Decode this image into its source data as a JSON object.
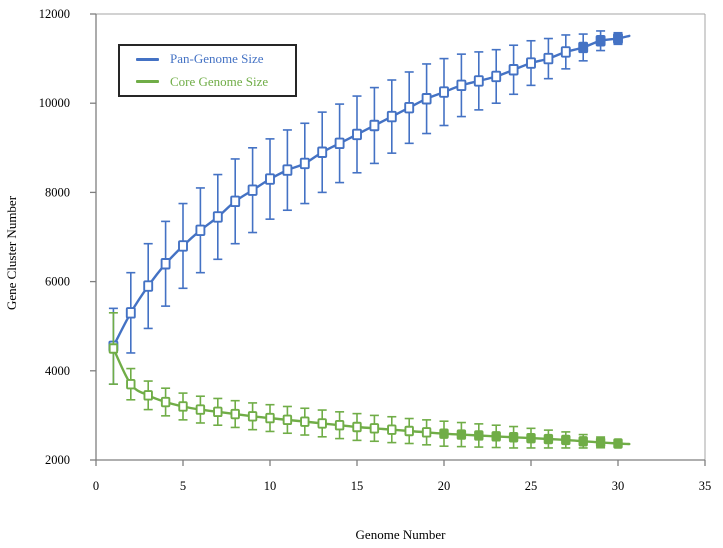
{
  "chart_data": {
    "type": "line",
    "title": "",
    "xlabel": "Genome Number",
    "ylabel": "Gene Cluster Number",
    "xlim": [
      0,
      35
    ],
    "ylim": [
      2000,
      12000
    ],
    "xticks": [
      0,
      5,
      10,
      15,
      20,
      25,
      30,
      35
    ],
    "yticks": [
      2000,
      4000,
      6000,
      8000,
      10000,
      12000
    ],
    "grid": false,
    "legend_position": "top-left-inside",
    "marker": "open-square",
    "error_bars": true,
    "x": [
      1,
      2,
      3,
      4,
      5,
      6,
      7,
      8,
      9,
      10,
      11,
      12,
      13,
      14,
      15,
      16,
      17,
      18,
      19,
      20,
      21,
      22,
      23,
      24,
      25,
      26,
      27,
      28,
      29,
      30
    ],
    "series": [
      {
        "name": "Pan-Genome Size",
        "color": "#4472C4",
        "values": [
          4550,
          5300,
          5900,
          6400,
          6800,
          7150,
          7450,
          7800,
          8050,
          8300,
          8500,
          8650,
          8900,
          9100,
          9300,
          9500,
          9700,
          9900,
          10100,
          10250,
          10400,
          10500,
          10600,
          10750,
          10900,
          11000,
          11150,
          11250,
          11400,
          11450
        ],
        "error": [
          850,
          900,
          950,
          950,
          950,
          950,
          950,
          950,
          950,
          900,
          900,
          900,
          900,
          880,
          860,
          850,
          820,
          800,
          780,
          750,
          700,
          650,
          600,
          550,
          500,
          450,
          380,
          300,
          220,
          130
        ]
      },
      {
        "name": "Core Genome Size",
        "color": "#70AD47",
        "values": [
          4500,
          3700,
          3450,
          3300,
          3200,
          3130,
          3080,
          3030,
          2980,
          2940,
          2900,
          2860,
          2820,
          2780,
          2740,
          2710,
          2680,
          2650,
          2620,
          2590,
          2570,
          2550,
          2530,
          2510,
          2490,
          2470,
          2450,
          2420,
          2395,
          2370
        ],
        "error": [
          800,
          350,
          320,
          310,
          300,
          300,
          300,
          300,
          300,
          300,
          300,
          300,
          300,
          300,
          300,
          290,
          290,
          280,
          280,
          280,
          270,
          260,
          250,
          240,
          220,
          200,
          180,
          150,
          120,
          80
        ]
      }
    ],
    "axis_color": "#7F7F7F",
    "plot_border_color": "#A6A6A6",
    "tick_label_color": "#000000"
  }
}
